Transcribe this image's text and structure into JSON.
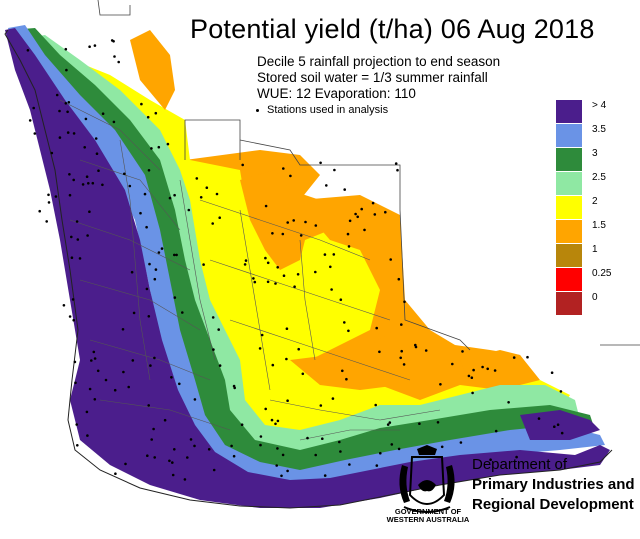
{
  "title": "Potential yield (t/ha) 06 Aug 2018",
  "subtitle_lines": [
    "Decile 5 rainfall projection to end season",
    "Stored soil water = 1/3 summer rainfall",
    "WUE:  12    Evaporation:  110"
  ],
  "stations_note": "Stations used in analysis",
  "legend": {
    "items": [
      {
        "label": "> 4",
        "color": "#4b1e8c"
      },
      {
        "label": "3.5",
        "color": "#6a93e6"
      },
      {
        "label": "3",
        "color": "#2e8b3b"
      },
      {
        "label": "2.5",
        "color": "#8fe8a3"
      },
      {
        "label": "2",
        "color": "#ffff00"
      },
      {
        "label": "1.5",
        "color": "#ffa500"
      },
      {
        "label": "1",
        "color": "#b8860b"
      },
      {
        "label": "0.25",
        "color": "#ff0000"
      },
      {
        "label": "0",
        "color": "#b22222"
      }
    ]
  },
  "branding": {
    "government": "GOVERNMENT OF WESTERN AUSTRALIA",
    "department_line1": "Department of",
    "department_line2": "Primary Industries and",
    "department_line3": "Regional Development"
  }
}
